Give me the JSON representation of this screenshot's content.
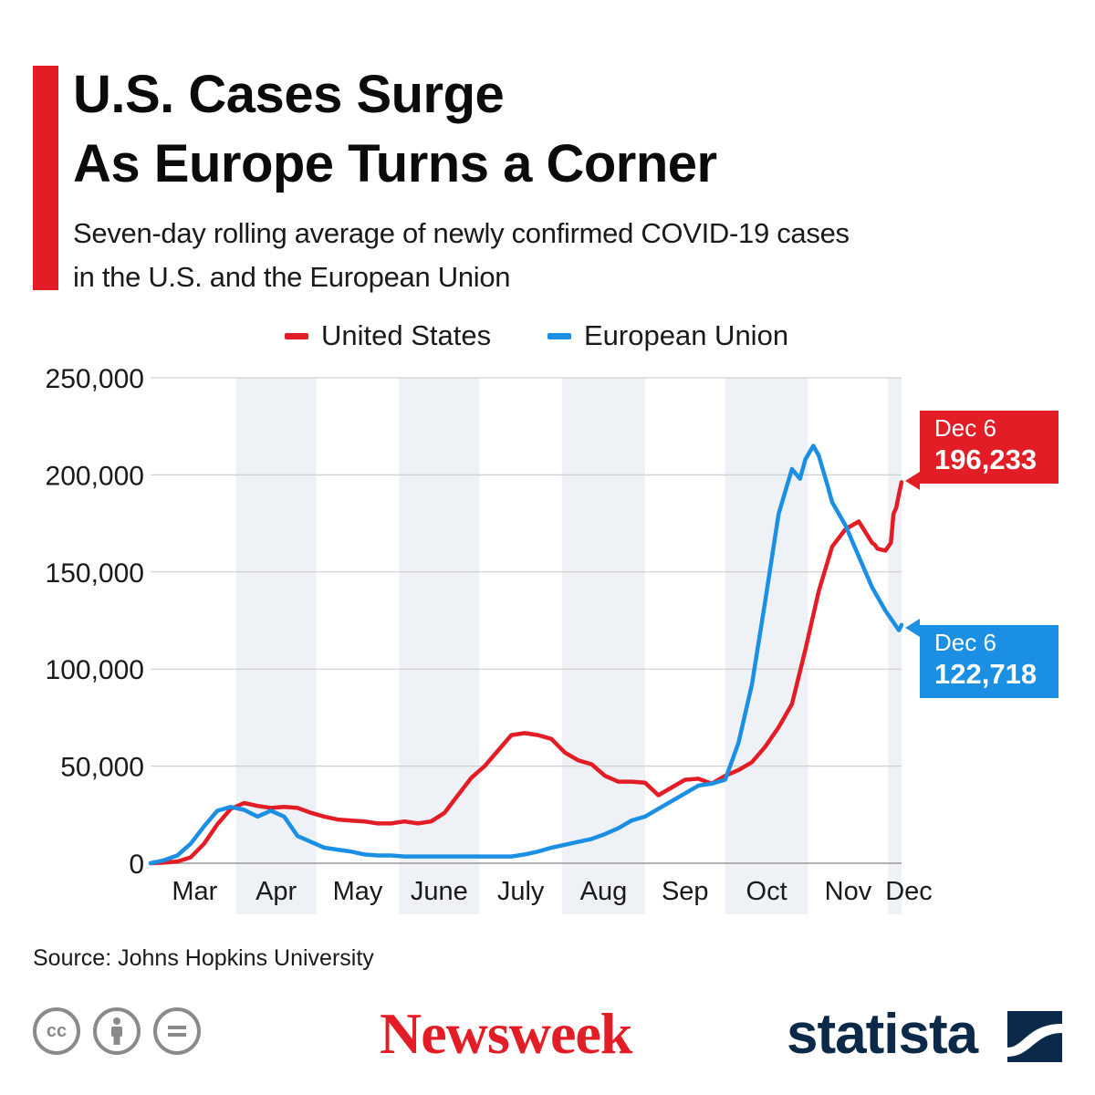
{
  "header": {
    "title_line1": "U.S. Cases Surge",
    "title_line2": "As Europe Turns a Corner",
    "subtitle_line1": "Seven-day rolling average of newly confirmed COVID-19 cases",
    "subtitle_line2": "in the U.S. and the European Union"
  },
  "legend": {
    "items": [
      {
        "label": "United States",
        "color": "#e31d25"
      },
      {
        "label": "European Union",
        "color": "#1a8fe3"
      }
    ]
  },
  "chart_data": {
    "type": "line",
    "x_unit": "day of year 2020",
    "y_ticks": [
      0,
      50000,
      100000,
      150000,
      200000,
      250000
    ],
    "y_tick_labels": [
      "0",
      "50,000",
      "100,000",
      "150,000",
      "200,000",
      "250,000"
    ],
    "ylim": [
      0,
      250000
    ],
    "month_labels": [
      "Mar",
      "Apr",
      "May",
      "June",
      "July",
      "Aug",
      "Sep",
      "Oct",
      "Nov",
      "Dec"
    ],
    "shaded_months": [
      "Apr",
      "June",
      "Aug",
      "Oct",
      "Dec"
    ],
    "grid": true,
    "series": [
      {
        "name": "United States",
        "color": "#e31d25",
        "x": [
          60,
          65,
          70,
          75,
          80,
          85,
          90,
          95,
          100,
          105,
          110,
          115,
          120,
          125,
          130,
          135,
          140,
          145,
          150,
          155,
          160,
          165,
          170,
          175,
          180,
          185,
          190,
          195,
          200,
          205,
          210,
          215,
          220,
          225,
          230,
          235,
          240,
          245,
          250,
          255,
          260,
          265,
          270,
          275,
          280,
          285,
          290,
          295,
          300,
          305,
          310,
          315,
          320,
          325,
          330,
          331,
          332,
          335,
          337,
          338,
          339,
          340,
          341
        ],
        "values": [
          0,
          300,
          900,
          3000,
          10000,
          20000,
          28000,
          31000,
          29500,
          28500,
          29000,
          28500,
          26000,
          24000,
          22500,
          22000,
          21500,
          20500,
          20500,
          21500,
          20500,
          21500,
          26000,
          35000,
          44000,
          50000,
          58000,
          66000,
          67000,
          66000,
          64000,
          57000,
          53000,
          51000,
          45000,
          42000,
          42000,
          41500,
          35000,
          39000,
          43000,
          43500,
          41000,
          45000,
          48000,
          52000,
          60000,
          70000,
          82000,
          110000,
          140000,
          163000,
          172000,
          176000,
          165000,
          164000,
          162000,
          161000,
          165000,
          180000,
          183000,
          190000,
          196233
        ],
        "end_label_date": "Dec  6",
        "end_label_value": "196,233"
      },
      {
        "name": "European Union",
        "color": "#1a8fe3",
        "x": [
          60,
          65,
          70,
          75,
          80,
          85,
          90,
          95,
          100,
          105,
          110,
          115,
          120,
          125,
          130,
          135,
          140,
          145,
          150,
          155,
          160,
          165,
          170,
          175,
          180,
          185,
          190,
          195,
          200,
          205,
          210,
          215,
          220,
          225,
          230,
          235,
          240,
          245,
          250,
          255,
          260,
          265,
          270,
          275,
          280,
          285,
          290,
          295,
          300,
          303,
          305,
          308,
          310,
          313,
          315,
          320,
          325,
          330,
          335,
          340,
          341
        ],
        "values": [
          0,
          1500,
          4000,
          10000,
          19000,
          27000,
          29000,
          27500,
          24000,
          27000,
          24000,
          14000,
          11000,
          8000,
          7000,
          6000,
          4500,
          4000,
          4000,
          3500,
          3500,
          3500,
          3500,
          3500,
          3500,
          3500,
          3500,
          3500,
          4500,
          6000,
          8000,
          9500,
          11000,
          12500,
          15000,
          18000,
          22000,
          24000,
          28000,
          32000,
          36000,
          40000,
          41000,
          43000,
          62000,
          92000,
          135000,
          180000,
          203000,
          198000,
          208000,
          215000,
          210000,
          196000,
          186000,
          174000,
          158000,
          142000,
          130000,
          120000,
          122718
        ],
        "end_label_date": "Dec  6",
        "end_label_value": "122,718"
      }
    ]
  },
  "footer": {
    "source": "Source: Johns Hopkins University",
    "cc_icons": [
      {
        "name": "cc-icon",
        "glyph": "cc"
      },
      {
        "name": "attribution-icon",
        "glyph": "person"
      },
      {
        "name": "no-derivatives-icon",
        "glyph": "="
      }
    ],
    "brand1": "Newsweek",
    "brand2": "statista",
    "brand2_icon": "statista-logo-icon"
  }
}
